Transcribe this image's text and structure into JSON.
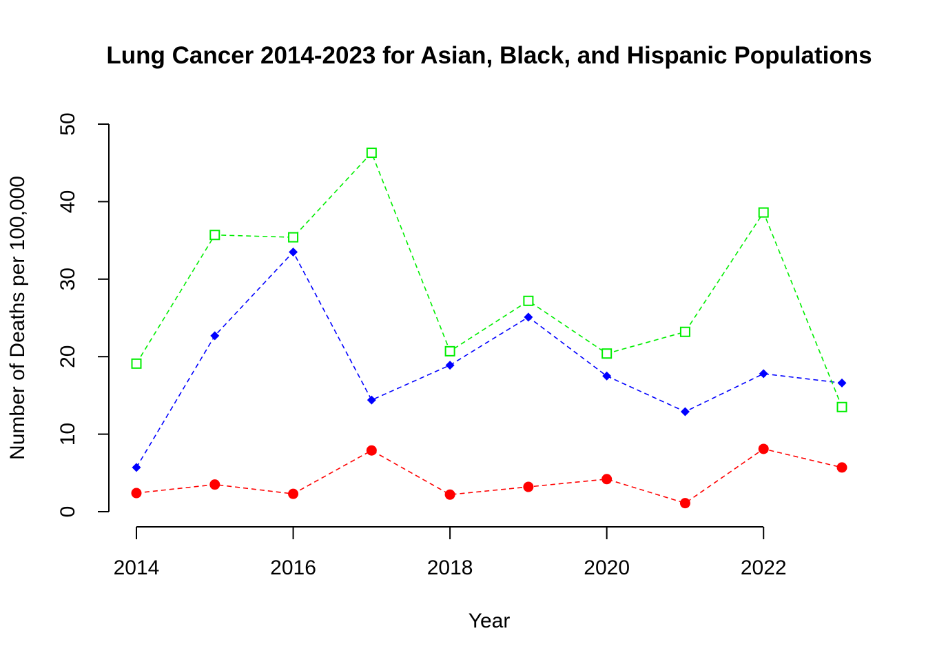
{
  "chart_data": {
    "type": "line",
    "title": "Lung Cancer 2014-2023 for Asian, Black, and Hispanic Populations",
    "xlabel": "Year",
    "ylabel": "Number of Deaths per 100,000",
    "x": [
      2014,
      2015,
      2016,
      2017,
      2018,
      2019,
      2020,
      2021,
      2022,
      2023
    ],
    "xlim": [
      2014,
      2023
    ],
    "ylim": [
      0,
      50
    ],
    "x_ticks": [
      "2014",
      "2016",
      "2018",
      "2020",
      "2022"
    ],
    "y_ticks": [
      "0",
      "10",
      "20",
      "30",
      "40",
      "50"
    ],
    "grid": false,
    "line_style": "dashed",
    "series": [
      {
        "marker": "filled-circle",
        "color": "#ff0000",
        "values": [
          2.4,
          3.5,
          2.3,
          7.9,
          2.2,
          3.2,
          4.2,
          1.1,
          8.1,
          5.7
        ]
      },
      {
        "marker": "filled-diamond",
        "color": "#0000ff",
        "values": [
          5.7,
          22.7,
          33.5,
          14.4,
          18.9,
          25.1,
          17.5,
          12.9,
          17.8,
          16.6
        ]
      },
      {
        "marker": "open-square",
        "color": "#00ee00",
        "values": [
          19.1,
          35.7,
          35.4,
          46.3,
          20.7,
          27.2,
          20.4,
          23.2,
          38.6,
          13.5
        ]
      }
    ]
  }
}
